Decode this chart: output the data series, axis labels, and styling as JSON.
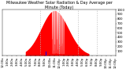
{
  "title": "Milwaukee Weather Solar Radiation & Day Average per Minute (Today)",
  "bg_color": "#ffffff",
  "plot_bg": "#ffffff",
  "grid_color": "#bbbbbb",
  "bar_color": "#ff0000",
  "avg_color": "#0000ff",
  "n_minutes": 1440,
  "ylim": [
    0,
    1000
  ],
  "xlim": [
    0,
    1440
  ],
  "dashed_lines": [
    480,
    720,
    960,
    1200
  ],
  "y_ticks": [
    100,
    200,
    300,
    400,
    500,
    600,
    700,
    800,
    900,
    1000
  ],
  "title_fontsize": 3.5,
  "tick_fontsize": 2.8,
  "sunrise": 290,
  "sunset": 1100,
  "peak_minute": 660,
  "peak_value": 980,
  "blue_bar_minute": 555,
  "blue_bar_height": 80
}
